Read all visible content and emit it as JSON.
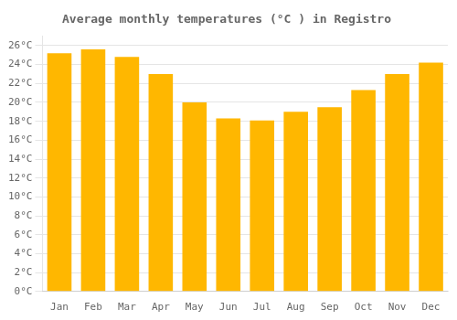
{
  "chart_data": {
    "type": "bar",
    "title": "Average monthly temperatures (°C ) in Registro",
    "categories": [
      "Jan",
      "Feb",
      "Mar",
      "Apr",
      "May",
      "Jun",
      "Jul",
      "Aug",
      "Sep",
      "Oct",
      "Nov",
      "Dec"
    ],
    "values": [
      25.2,
      25.6,
      24.8,
      23.0,
      20.0,
      18.3,
      18.1,
      19.0,
      19.5,
      21.3,
      23.0,
      24.2
    ],
    "color": "#FFB700",
    "ylim": [
      0,
      27
    ],
    "yticks": [
      {
        "value": 0,
        "label": "0°C"
      },
      {
        "value": 2,
        "label": "2°C"
      },
      {
        "value": 4,
        "label": "4°C"
      },
      {
        "value": 6,
        "label": "6°C"
      },
      {
        "value": 8,
        "label": "8°C"
      },
      {
        "value": 10,
        "label": "10°C"
      },
      {
        "value": 12,
        "label": "12°C"
      },
      {
        "value": 14,
        "label": "14°C"
      },
      {
        "value": 16,
        "label": "16°C"
      },
      {
        "value": 18,
        "label": "18°C"
      },
      {
        "value": 20,
        "label": "20°C"
      },
      {
        "value": 22,
        "label": "22°C"
      },
      {
        "value": 24,
        "label": "24°C"
      },
      {
        "value": 26,
        "label": "26°C"
      }
    ],
    "grid": true
  }
}
